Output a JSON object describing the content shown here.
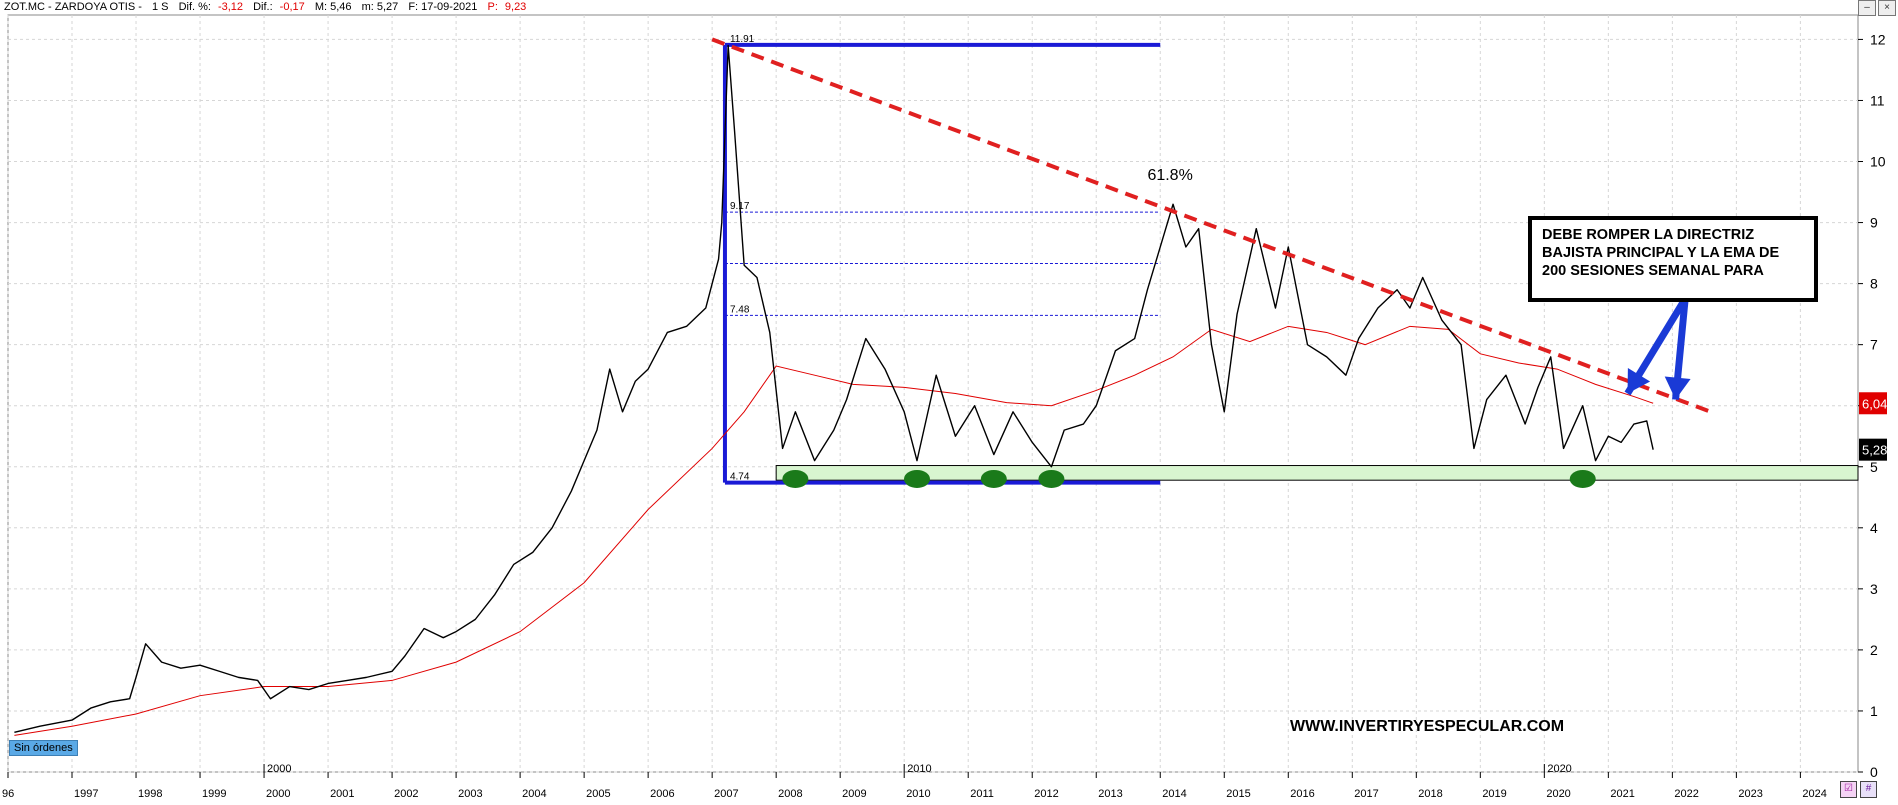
{
  "header": {
    "symbol": "ZOT.MC - ZARDOYA OTIS -",
    "timeframe": "1 S",
    "dif_pct_label": "Dif. %:",
    "dif_pct_value": "-3,12",
    "dif_label": "Dif.:",
    "dif_value": "-0,17",
    "max_label": "M: 5,46",
    "min_label": "m: 5,27",
    "date_label": "F: 17-09-2021",
    "price_label": "P:",
    "price_value": "9,23"
  },
  "window_buttons": {
    "minimize": "–",
    "close": "×"
  },
  "orders_badge": "Sin órdenes",
  "note_text": "DEBE ROMPER LA DIRECTRIZ BAJISTA PRINCIPAL Y LA EMA DE 200 SESIONES SEMANAL PARA",
  "watermark": "WWW.INVERTIRYESPECULAR.COM",
  "colors": {
    "price": "#000000",
    "ema": "#e00000",
    "trendline": "#e02020",
    "range_box": "#1a1ad6",
    "fib": "#1a1ad6",
    "support_zone": "#d8f5d0",
    "support_marker": "#1a7a1a",
    "arrow": "#1a3ad6",
    "grid": "#d6d6d6"
  },
  "chart_data": {
    "type": "line",
    "title": "",
    "xlabel": "",
    "ylabel": "",
    "xlim": [
      1996.0,
      2024.9
    ],
    "ylim": [
      0,
      12.4
    ],
    "y_ticks": [
      0,
      1,
      2,
      3,
      4,
      5,
      6,
      7,
      8,
      9,
      10,
      11,
      12
    ],
    "x_ticks": [
      "96",
      "1997",
      "1998",
      "1999",
      "2000",
      "2001",
      "2002",
      "2003",
      "2004",
      "2005",
      "2006",
      "2007",
      "2008",
      "2009",
      "2010",
      "2011",
      "2012",
      "2013",
      "2014",
      "2015",
      "2016",
      "2017",
      "2018",
      "2019",
      "2020",
      "2021",
      "2022",
      "2023",
      "2024"
    ],
    "decade_labels": [
      {
        "x": 2000,
        "label": "2000"
      },
      {
        "x": 2010,
        "label": "2010"
      },
      {
        "x": 2020,
        "label": "2020"
      }
    ],
    "grid": true,
    "series": [
      {
        "role": "price",
        "x": [
          1996.1,
          1996.5,
          1997.0,
          1997.3,
          1997.6,
          1997.9,
          1998.0,
          1998.15,
          1998.4,
          1998.7,
          1999.0,
          1999.3,
          1999.6,
          1999.9,
          2000.1,
          2000.4,
          2000.7,
          2001.0,
          2001.3,
          2001.6,
          2002.0,
          2002.2,
          2002.5,
          2002.8,
          2003.0,
          2003.3,
          2003.6,
          2003.9,
          2004.2,
          2004.5,
          2004.8,
          2005.0,
          2005.2,
          2005.4,
          2005.6,
          2005.8,
          2006.0,
          2006.3,
          2006.6,
          2006.9,
          2007.1,
          2007.15,
          2007.25,
          2007.35,
          2007.5,
          2007.7,
          2007.9,
          2008.1,
          2008.3,
          2008.6,
          2008.9,
          2009.1,
          2009.4,
          2009.7,
          2010.0,
          2010.2,
          2010.5,
          2010.8,
          2011.1,
          2011.4,
          2011.7,
          2012.0,
          2012.3,
          2012.5,
          2012.8,
          2013.0,
          2013.3,
          2013.6,
          2013.8,
          2014.0,
          2014.2,
          2014.4,
          2014.6,
          2014.8,
          2015.0,
          2015.2,
          2015.5,
          2015.8,
          2016.0,
          2016.3,
          2016.6,
          2016.9,
          2017.1,
          2017.4,
          2017.7,
          2017.9,
          2018.1,
          2018.4,
          2018.7,
          2018.9,
          2019.1,
          2019.4,
          2019.7,
          2019.9,
          2020.1,
          2020.3,
          2020.6,
          2020.8,
          2021.0,
          2021.2,
          2021.4,
          2021.6,
          2021.7
        ],
        "values": [
          0.65,
          0.75,
          0.85,
          1.05,
          1.15,
          1.2,
          1.55,
          2.1,
          1.8,
          1.7,
          1.75,
          1.65,
          1.55,
          1.5,
          1.2,
          1.4,
          1.35,
          1.45,
          1.5,
          1.55,
          1.65,
          1.9,
          2.35,
          2.2,
          2.3,
          2.5,
          2.9,
          3.4,
          3.6,
          4.0,
          4.6,
          5.1,
          5.6,
          6.6,
          5.9,
          6.4,
          6.6,
          7.2,
          7.3,
          7.6,
          8.4,
          9.0,
          11.9,
          10.5,
          8.3,
          8.1,
          7.2,
          5.3,
          5.9,
          5.1,
          5.6,
          6.1,
          7.1,
          6.6,
          5.9,
          5.1,
          6.5,
          5.5,
          6.0,
          5.2,
          5.9,
          5.4,
          5.0,
          5.6,
          5.7,
          6.0,
          6.9,
          7.1,
          7.9,
          8.6,
          9.3,
          8.6,
          8.9,
          7.0,
          5.9,
          7.5,
          8.9,
          7.6,
          8.6,
          7.0,
          6.8,
          6.5,
          7.1,
          7.6,
          7.9,
          7.6,
          8.1,
          7.4,
          7.0,
          5.3,
          6.1,
          6.5,
          5.7,
          6.3,
          6.8,
          5.3,
          6.0,
          5.1,
          5.5,
          5.4,
          5.7,
          5.75,
          5.28
        ]
      },
      {
        "role": "ema",
        "x": [
          1996.1,
          1997.0,
          1998.0,
          1999.0,
          2000.0,
          2001.0,
          2002.0,
          2003.0,
          2004.0,
          2005.0,
          2006.0,
          2007.0,
          2007.5,
          2008.0,
          2008.6,
          2009.2,
          2010.0,
          2010.8,
          2011.6,
          2012.3,
          2013.0,
          2013.6,
          2014.2,
          2014.8,
          2015.4,
          2016.0,
          2016.6,
          2017.2,
          2017.9,
          2018.5,
          2019.0,
          2019.6,
          2020.2,
          2020.8,
          2021.4,
          2021.7
        ],
        "values": [
          0.6,
          0.75,
          0.95,
          1.25,
          1.4,
          1.4,
          1.5,
          1.8,
          2.3,
          3.1,
          4.3,
          5.3,
          5.9,
          6.65,
          6.5,
          6.35,
          6.3,
          6.2,
          6.05,
          6.0,
          6.25,
          6.5,
          6.8,
          7.25,
          7.05,
          7.3,
          7.2,
          7.0,
          7.3,
          7.25,
          6.85,
          6.7,
          6.6,
          6.35,
          6.15,
          6.04
        ]
      }
    ],
    "trendline": {
      "x": [
        2007.0,
        2022.6
      ],
      "values": [
        12.0,
        5.9
      ]
    },
    "range_box": {
      "x_start": 2007.2,
      "x_end": 2014.0,
      "top": 11.91,
      "bottom": 4.74
    },
    "fib_levels": [
      {
        "value": 9.17,
        "label": "9.17"
      },
      {
        "value": 8.33,
        "label": ""
      },
      {
        "value": 7.48,
        "label": "7.48"
      }
    ],
    "box_labels": [
      {
        "value": 11.91,
        "label": "11.91"
      },
      {
        "value": 4.74,
        "label": "4.74"
      }
    ],
    "support_zone": {
      "x_start": 2008.0,
      "x_end": 2024.9,
      "low": 4.78,
      "high": 5.02
    },
    "support_markers": [
      2008.3,
      2010.2,
      2011.4,
      2012.3,
      2020.6
    ],
    "annotations": [
      {
        "x": 2013.8,
        "y": 9.7,
        "text": "61.8%"
      }
    ],
    "last_price_tags": [
      {
        "value": 6.04,
        "label": "6,04",
        "bg": "#e00000"
      },
      {
        "value": 5.28,
        "label": "5,28",
        "bg": "#000000"
      }
    ],
    "arrows": [
      {
        "from": [
          2022.2,
          7.75
        ],
        "to": [
          2021.3,
          6.2
        ]
      },
      {
        "from": [
          2022.2,
          7.75
        ],
        "to": [
          2022.05,
          6.1
        ]
      }
    ]
  }
}
